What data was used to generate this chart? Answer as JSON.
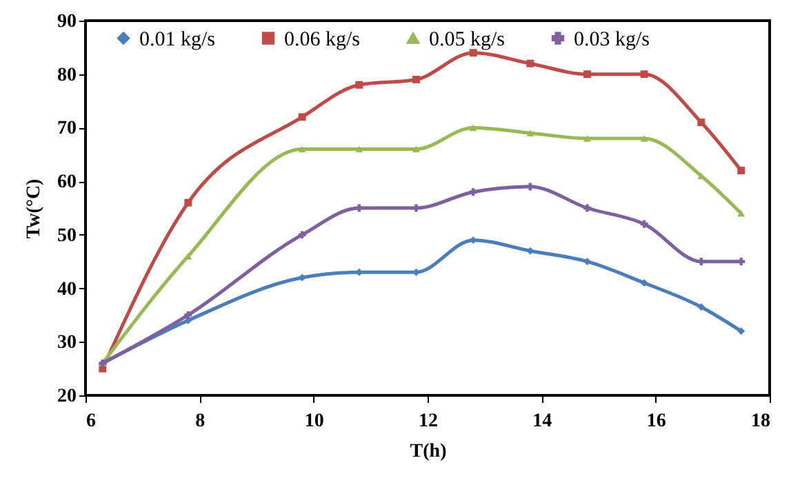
{
  "chart_data": {
    "type": "line",
    "xlabel": "T(h)",
    "ylabel": "Tw(°C)",
    "x": [
      6.3,
      7.8,
      9.8,
      10.8,
      11.8,
      12.8,
      13.8,
      14.8,
      15.8,
      16.8,
      17.5
    ],
    "series": [
      {
        "name": "0.01 kg/s",
        "color": "#4a7ebb",
        "marker": "diamond",
        "values": [
          26,
          34,
          42,
          43,
          43,
          49,
          47,
          45,
          41,
          36.5,
          32
        ]
      },
      {
        "name": "0.06 kg/s",
        "color": "#be4b48",
        "marker": "square",
        "values": [
          25,
          56,
          72,
          78,
          79,
          84,
          82,
          80,
          80,
          71,
          62
        ]
      },
      {
        "name": "0.05 kg/s",
        "color": "#98b954",
        "marker": "triangle",
        "values": [
          26,
          46,
          66,
          66,
          66,
          70,
          69,
          68,
          68,
          61,
          54
        ]
      },
      {
        "name": "0.03 kg/s",
        "color": "#7d60a0",
        "marker": "cross",
        "values": [
          26,
          35,
          50,
          55,
          55,
          58,
          59,
          55,
          52,
          45,
          45
        ]
      }
    ],
    "xlim": [
      6,
      18
    ],
    "xticks": [
      6,
      8,
      10,
      12,
      14,
      16,
      18
    ],
    "ylim": [
      20,
      90
    ],
    "yticks": [
      20,
      30,
      40,
      50,
      60,
      70,
      80,
      90
    ],
    "grid": false,
    "legend": "top"
  }
}
